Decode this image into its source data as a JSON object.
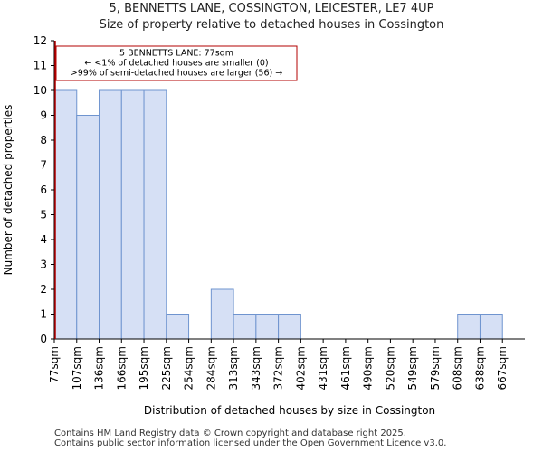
{
  "title": "5, BENNETTS LANE, COSSINGTON, LEICESTER, LE7 4UP",
  "subtitle": "Size of property relative to detached houses in Cossington",
  "footer": {
    "line1": "Contains HM Land Registry data © Crown copyright and database right 2025.",
    "line2": "Contains public sector information licensed under the Open Government Licence v3.0."
  },
  "colors": {
    "bar_fill": "#d6e0f5",
    "bar_stroke": "#6f94cf",
    "marker": "#b30000",
    "axis": "#000000"
  },
  "chart_data": {
    "type": "bar",
    "title": "Size of property relative to detached houses in Cossington",
    "xlabel": "Distribution of detached houses by size in Cossington",
    "ylabel": "Number of detached properties",
    "categories": [
      "77sqm",
      "107sqm",
      "136sqm",
      "166sqm",
      "195sqm",
      "225sqm",
      "254sqm",
      "284sqm",
      "313sqm",
      "343sqm",
      "372sqm",
      "402sqm",
      "431sqm",
      "461sqm",
      "490sqm",
      "520sqm",
      "549sqm",
      "579sqm",
      "608sqm",
      "638sqm",
      "667sqm"
    ],
    "values": [
      10,
      9,
      10,
      10,
      10,
      1,
      0,
      2,
      1,
      1,
      1,
      0,
      0,
      0,
      0,
      0,
      0,
      0,
      1,
      1,
      0
    ],
    "ylim": [
      0,
      12
    ],
    "yticks": [
      0,
      1,
      2,
      3,
      4,
      5,
      6,
      7,
      8,
      9,
      10,
      11,
      12
    ],
    "grid": false,
    "marker": {
      "category_index": 0,
      "value_sqm": 77
    },
    "annotation": {
      "line1": "5 BENNETTS LANE: 77sqm",
      "line2": "← <1% of detached houses are smaller (0)",
      "line3": ">99% of semi-detached houses are larger (56) →"
    }
  }
}
